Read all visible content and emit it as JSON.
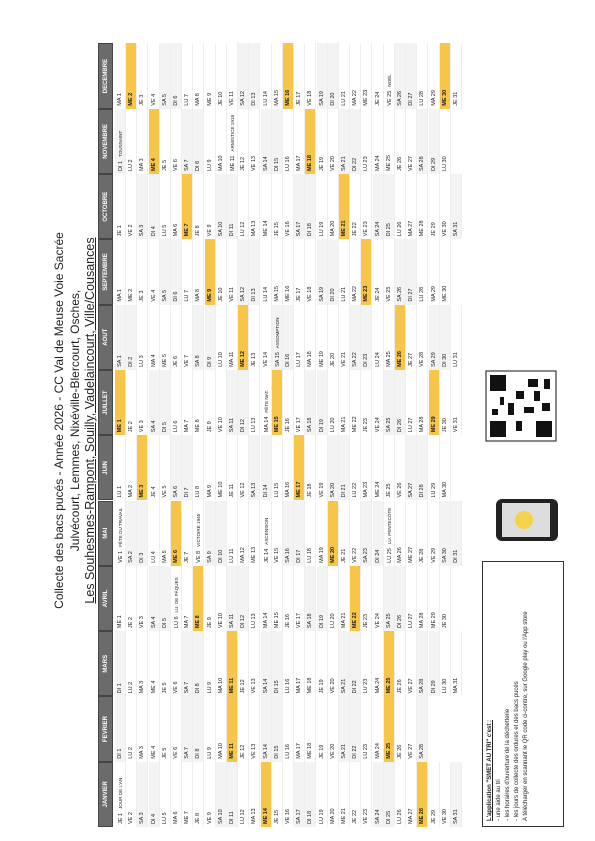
{
  "header": {
    "title": "Collecte des bacs pucés - Année 2026 - CC Val de Meuse Voie Sacrée",
    "subtitle": "Julvécourt, Lemmes, Nixéville-Blercourt, Osches,",
    "communes": "Les Souhesmes-Rampont, Souilly, Vadelaincourt, Ville/Cousances"
  },
  "months": [
    {
      "name": "JANVIER",
      "days": [
        "JE 1",
        "VE 2",
        "SA 3",
        "DI 4",
        "LU 5",
        "MA 6",
        "ME 7",
        "JE 8",
        "VE 9",
        "SA 10",
        "DI 11",
        "LU 12",
        "MA 13",
        "ME 14",
        "JE 15",
        "VE 16",
        "SA 17",
        "DI 18",
        "LU 19",
        "MA 20",
        "ME 21",
        "JE 22",
        "VE 23",
        "SA 24",
        "DI 25",
        "LU 26",
        "MA 27",
        "ME 28",
        "JE 29",
        "VE 30",
        "SA 31"
      ],
      "collecte": [
        14,
        28
      ],
      "holidays": {
        "1": "JOUR DE L'AN"
      }
    },
    {
      "name": "FEVRIER",
      "days": [
        "DI 1",
        "LU 2",
        "MA 3",
        "ME 4",
        "JE 5",
        "VE 6",
        "SA 7",
        "DI 8",
        "LU 9",
        "MA 10",
        "ME 11",
        "JE 12",
        "VE 13",
        "SA 14",
        "DI 15",
        "LU 16",
        "MA 17",
        "ME 18",
        "JE 19",
        "VE 20",
        "SA 21",
        "DI 22",
        "LU 23",
        "MA 24",
        "ME 25",
        "JE 26",
        "VE 27",
        "SA 28"
      ],
      "collecte": [
        11,
        25
      ],
      "holidays": {}
    },
    {
      "name": "MARS",
      "days": [
        "DI 1",
        "LU 2",
        "MA 3",
        "ME 4",
        "JE 5",
        "VE 6",
        "SA 7",
        "DI 8",
        "LU 9",
        "MA 10",
        "ME 11",
        "JE 12",
        "VE 13",
        "SA 14",
        "DI 15",
        "LU 16",
        "MA 17",
        "ME 18",
        "JE 19",
        "VE 20",
        "SA 21",
        "DI 22",
        "LU 23",
        "MA 24",
        "ME 25",
        "JE 26",
        "VE 27",
        "SA 28",
        "DI 29",
        "LU 30",
        "MA 31"
      ],
      "collecte": [
        11,
        25
      ],
      "holidays": {}
    },
    {
      "name": "AVRIL",
      "days": [
        "ME 1",
        "JE 2",
        "VE 3",
        "SA 4",
        "DI 5",
        "LU 6",
        "MA 7",
        "ME 8",
        "JE 9",
        "VE 10",
        "SA 11",
        "DI 12",
        "LU 13",
        "MA 14",
        "ME 15",
        "JE 16",
        "VE 17",
        "SA 18",
        "DI 19",
        "LU 20",
        "MA 21",
        "ME 22",
        "JE 23",
        "VE 24",
        "SA 25",
        "DI 26",
        "LU 27",
        "MA 28",
        "ME 29",
        "JE 30"
      ],
      "collecte": [
        8,
        22
      ],
      "holidays": {
        "6": "LU. DE PÂQUES"
      }
    },
    {
      "name": "MAI",
      "days": [
        "VE 1",
        "SA 2",
        "DI 3",
        "LU 4",
        "MA 5",
        "ME 6",
        "JE 7",
        "VE 8",
        "SA 9",
        "DI 10",
        "LU 11",
        "MA 12",
        "ME 13",
        "JE 14",
        "VE 15",
        "SA 16",
        "DI 17",
        "LU 18",
        "MA 19",
        "ME 20",
        "JE 21",
        "VE 22",
        "SA 23",
        "DI 24",
        "LU 25",
        "MA 26",
        "ME 27",
        "JE 28",
        "VE 29",
        "SA 30",
        "DI 31"
      ],
      "collecte": [
        6,
        20
      ],
      "holidays": {
        "1": "FÊTE DU TRAVAIL",
        "8": "VICTOIRE 1945",
        "14": "ASCENSION",
        "25": "LU. PENTECÔTE"
      }
    },
    {
      "name": "JUIN",
      "days": [
        "LU 1",
        "MA 2",
        "ME 3",
        "JE 4",
        "VE 5",
        "SA 6",
        "DI 7",
        "LU 8",
        "MA 9",
        "ME 10",
        "JE 11",
        "VE 12",
        "SA 13",
        "DI 14",
        "LU 15",
        "MA 16",
        "ME 17",
        "JE 18",
        "VE 19",
        "SA 20",
        "DI 21",
        "LU 22",
        "MA 23",
        "ME 24",
        "JE 25",
        "VE 26",
        "SA 27",
        "DI 28",
        "LU 29",
        "MA 30"
      ],
      "collecte": [
        3,
        17
      ],
      "holidays": {}
    },
    {
      "name": "JUILLET",
      "days": [
        "ME 1",
        "JE 2",
        "VE 3",
        "SA 4",
        "DI 5",
        "LU 6",
        "MA 7",
        "ME 8",
        "JE 9",
        "VE 10",
        "SA 11",
        "DI 12",
        "LU 13",
        "MA 14",
        "ME 15",
        "JE 16",
        "VE 17",
        "SA 18",
        "DI 19",
        "LU 20",
        "MA 21",
        "ME 22",
        "JE 23",
        "VE 24",
        "SA 25",
        "DI 26",
        "LU 27",
        "MA 28",
        "ME 29",
        "JE 30",
        "VE 31"
      ],
      "collecte": [
        1,
        15,
        29
      ],
      "holidays": {
        "14": "FÊTE NAT."
      }
    },
    {
      "name": "AOUT",
      "days": [
        "SA 1",
        "DI 2",
        "LU 3",
        "MA 4",
        "ME 5",
        "JE 6",
        "VE 7",
        "SA 8",
        "DI 9",
        "LU 10",
        "MA 11",
        "ME 12",
        "JE 13",
        "VE 14",
        "SA 15",
        "DI 16",
        "LU 17",
        "MA 18",
        "ME 19",
        "JE 20",
        "VE 21",
        "SA 22",
        "DI 23",
        "LU 24",
        "MA 25",
        "ME 26",
        "JE 27",
        "VE 28",
        "SA 29",
        "DI 30",
        "LU 31"
      ],
      "collecte": [
        12,
        26
      ],
      "holidays": {
        "15": "ASSOMPTION"
      }
    },
    {
      "name": "SEPTEMBRE",
      "days": [
        "MA 1",
        "ME 2",
        "JE 3",
        "VE 4",
        "SA 5",
        "DI 6",
        "LU 7",
        "MA 8",
        "ME 9",
        "JE 10",
        "VE 11",
        "SA 12",
        "DI 13",
        "LU 14",
        "MA 15",
        "ME 16",
        "JE 17",
        "VE 18",
        "SA 19",
        "DI 20",
        "LU 21",
        "MA 22",
        "ME 23",
        "JE 24",
        "VE 25",
        "SA 26",
        "DI 27",
        "LU 28",
        "MA 29",
        "ME 30"
      ],
      "collecte": [
        9,
        23
      ],
      "holidays": {}
    },
    {
      "name": "OCTOBRE",
      "days": [
        "JE 1",
        "VE 2",
        "SA 3",
        "DI 4",
        "LU 5",
        "MA 6",
        "ME 7",
        "JE 8",
        "VE 9",
        "SA 10",
        "DI 11",
        "LU 12",
        "MA 13",
        "ME 14",
        "JE 15",
        "VE 16",
        "SA 17",
        "DI 18",
        "LU 19",
        "MA 20",
        "ME 21",
        "JE 22",
        "VE 23",
        "SA 24",
        "DI 25",
        "LU 26",
        "MA 27",
        "ME 28",
        "JE 29",
        "VE 30",
        "SA 31"
      ],
      "collecte": [
        7,
        21
      ],
      "holidays": {}
    },
    {
      "name": "NOVEMBRE",
      "days": [
        "DI 1",
        "LU 2",
        "MA 3",
        "ME 4",
        "JE 5",
        "VE 6",
        "SA 7",
        "DI 8",
        "LU 9",
        "MA 10",
        "ME 11",
        "JE 12",
        "VE 13",
        "SA 14",
        "DI 15",
        "LU 16",
        "MA 17",
        "ME 18",
        "JE 19",
        "VE 20",
        "SA 21",
        "DI 22",
        "LU 23",
        "MA 24",
        "ME 25",
        "JE 26",
        "VE 27",
        "SA 28",
        "DI 29",
        "LU 30"
      ],
      "collecte": [
        4,
        18
      ],
      "holidays": {
        "1": "TOUSSAINT",
        "11": "ARMISTICE 1918"
      }
    },
    {
      "name": "DECEMBRE",
      "days": [
        "MA 1",
        "ME 2",
        "JE 3",
        "VE 4",
        "SA 5",
        "DI 6",
        "LU 7",
        "MA 8",
        "ME 9",
        "JE 10",
        "VE 11",
        "SA 12",
        "DI 13",
        "LU 14",
        "MA 15",
        "ME 16",
        "JE 17",
        "VE 18",
        "SA 19",
        "DI 20",
        "LU 21",
        "MA 22",
        "ME 23",
        "JE 24",
        "VE 25",
        "SA 26",
        "DI 27",
        "LU 28",
        "MA 29",
        "ME 30",
        "JE 31"
      ],
      "collecte": [
        2,
        16,
        30
      ],
      "holidays": {
        "25": "NOËL"
      }
    }
  ],
  "footer": {
    "heading": "L'application \"SMET AU TRI\" c'est :",
    "items": [
      "- une aide au tri",
      "- les horaires d'ouverture de la déchetterie",
      "- les jours de collecte des ordures et des bacs pucés"
    ],
    "note": "A télécharger en scannant le QR code ci-contre, sur Google play ou l'App store"
  }
}
